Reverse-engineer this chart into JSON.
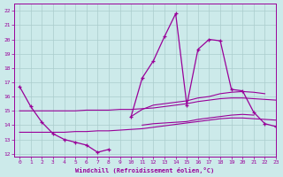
{
  "title": "",
  "xlabel": "Windchill (Refroidissement éolien,°C)",
  "ylabel": "",
  "background_color": "#cceaea",
  "grid_color": "#aacccc",
  "line_color": "#990099",
  "xlim": [
    -0.5,
    23
  ],
  "ylim": [
    11.8,
    22.5
  ],
  "yticks": [
    12,
    13,
    14,
    15,
    16,
    17,
    18,
    19,
    20,
    21,
    22
  ],
  "xticks": [
    0,
    1,
    2,
    3,
    4,
    5,
    6,
    7,
    8,
    9,
    10,
    11,
    12,
    13,
    14,
    15,
    16,
    17,
    18,
    19,
    20,
    21,
    22,
    23
  ],
  "hours": [
    0,
    1,
    2,
    3,
    4,
    5,
    6,
    7,
    8,
    9,
    10,
    11,
    12,
    13,
    14,
    15,
    16,
    17,
    18,
    19,
    20,
    21,
    22,
    23
  ],
  "main_line": [
    16.7,
    15.3,
    14.2,
    13.4,
    13.0,
    12.8,
    12.6,
    12.1,
    12.3,
    null,
    14.6,
    17.3,
    18.5,
    20.2,
    21.8,
    15.4,
    19.3,
    20.0,
    19.9,
    16.5,
    16.4,
    14.9,
    14.1,
    13.9
  ],
  "reg_line1": [
    15.0,
    15.0,
    15.0,
    15.0,
    15.0,
    15.0,
    15.05,
    15.05,
    15.05,
    15.1,
    15.1,
    15.15,
    15.2,
    15.3,
    15.4,
    15.5,
    15.65,
    15.75,
    15.85,
    15.9,
    15.9,
    15.85,
    15.8,
    15.75
  ],
  "reg_line2": [
    13.5,
    13.5,
    13.5,
    13.5,
    13.5,
    13.55,
    13.55,
    13.6,
    13.6,
    13.65,
    13.7,
    13.75,
    13.85,
    13.95,
    14.05,
    14.15,
    14.25,
    14.35,
    14.45,
    14.5,
    14.5,
    14.45,
    14.4,
    14.35
  ],
  "upper_env": [
    null,
    null,
    null,
    null,
    null,
    null,
    null,
    null,
    null,
    null,
    14.6,
    15.1,
    15.4,
    15.5,
    15.6,
    15.7,
    15.9,
    16.0,
    16.2,
    16.3,
    16.35,
    16.3,
    16.2,
    null
  ],
  "lower_env": [
    null,
    null,
    null,
    null,
    null,
    null,
    null,
    null,
    null,
    null,
    null,
    14.0,
    14.1,
    14.15,
    14.2,
    14.25,
    14.4,
    14.5,
    14.6,
    14.7,
    14.75,
    14.7,
    null,
    null
  ]
}
